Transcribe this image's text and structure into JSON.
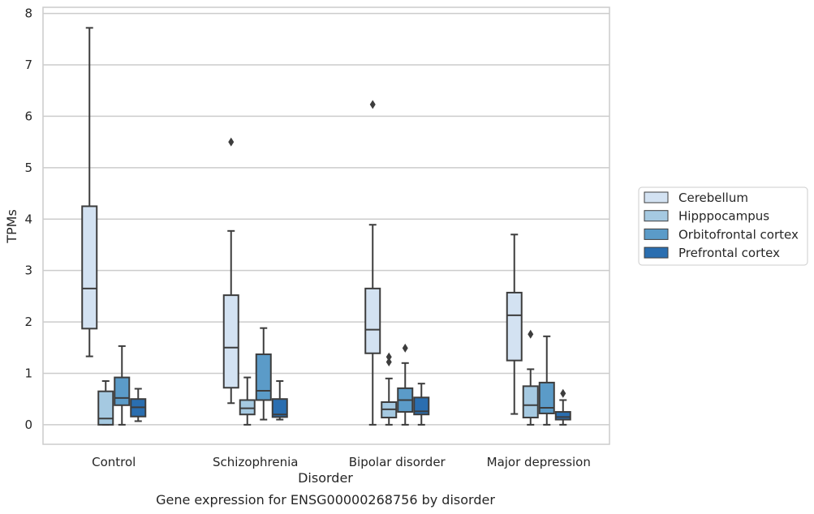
{
  "chart_data": {
    "type": "box",
    "caption": "Gene expression for ENSG00000268756 by disorder",
    "xlabel": "Disorder",
    "ylabel": "TPMs",
    "ylim": [
      -0.38,
      8.12
    ],
    "yticks": [
      0,
      1,
      2,
      3,
      4,
      5,
      6,
      7,
      8
    ],
    "grid": "horizontal",
    "legend_position": "right",
    "categories": [
      "Control",
      "Schizophrenia",
      "Bipolar disorder",
      "Major depression"
    ],
    "series": [
      {
        "name": "Cerebellum",
        "color": "#d3e2f2",
        "boxes": [
          {
            "whislo": 1.33,
            "q1": 1.87,
            "med": 2.65,
            "q3": 4.25,
            "whishi": 7.72,
            "fliers": []
          },
          {
            "whislo": 0.42,
            "q1": 0.72,
            "med": 1.5,
            "q3": 2.52,
            "whishi": 3.77,
            "fliers": [
              5.5
            ]
          },
          {
            "whislo": 0.0,
            "q1": 1.39,
            "med": 1.85,
            "q3": 2.65,
            "whishi": 3.89,
            "fliers": [
              6.23
            ]
          },
          {
            "whislo": 0.21,
            "q1": 1.25,
            "med": 2.13,
            "q3": 2.57,
            "whishi": 3.7,
            "fliers": []
          }
        ]
      },
      {
        "name": "Hipppocampus",
        "color": "#a5c9e1",
        "boxes": [
          {
            "whislo": 0.0,
            "q1": 0.0,
            "med": 0.12,
            "q3": 0.65,
            "whishi": 0.85,
            "fliers": []
          },
          {
            "whislo": 0.0,
            "q1": 0.2,
            "med": 0.32,
            "q3": 0.48,
            "whishi": 0.92,
            "fliers": []
          },
          {
            "whislo": 0.0,
            "q1": 0.14,
            "med": 0.3,
            "q3": 0.44,
            "whishi": 0.9,
            "fliers": [
              1.22,
              1.32
            ]
          },
          {
            "whislo": 0.0,
            "q1": 0.14,
            "med": 0.38,
            "q3": 0.75,
            "whishi": 1.08,
            "fliers": [
              1.76
            ]
          }
        ]
      },
      {
        "name": "Orbitofrontal cortex",
        "color": "#5b9bc8",
        "boxes": [
          {
            "whislo": 0.0,
            "q1": 0.38,
            "med": 0.52,
            "q3": 0.92,
            "whishi": 1.53,
            "fliers": []
          },
          {
            "whislo": 0.1,
            "q1": 0.48,
            "med": 0.66,
            "q3": 1.37,
            "whishi": 1.88,
            "fliers": []
          },
          {
            "whislo": 0.0,
            "q1": 0.25,
            "med": 0.48,
            "q3": 0.71,
            "whishi": 1.2,
            "fliers": [
              1.49
            ]
          },
          {
            "whislo": 0.0,
            "q1": 0.22,
            "med": 0.33,
            "q3": 0.82,
            "whishi": 1.72,
            "fliers": []
          }
        ]
      },
      {
        "name": "Prefrontal cortex",
        "color": "#2a6eb0",
        "boxes": [
          {
            "whislo": 0.07,
            "q1": 0.16,
            "med": 0.34,
            "q3": 0.5,
            "whishi": 0.7,
            "fliers": []
          },
          {
            "whislo": 0.1,
            "q1": 0.15,
            "med": 0.2,
            "q3": 0.5,
            "whishi": 0.85,
            "fliers": []
          },
          {
            "whislo": 0.0,
            "q1": 0.2,
            "med": 0.26,
            "q3": 0.53,
            "whishi": 0.8,
            "fliers": []
          },
          {
            "whislo": 0.0,
            "q1": 0.1,
            "med": 0.15,
            "q3": 0.25,
            "whishi": 0.48,
            "fliers": [
              0.61
            ]
          }
        ]
      }
    ]
  }
}
